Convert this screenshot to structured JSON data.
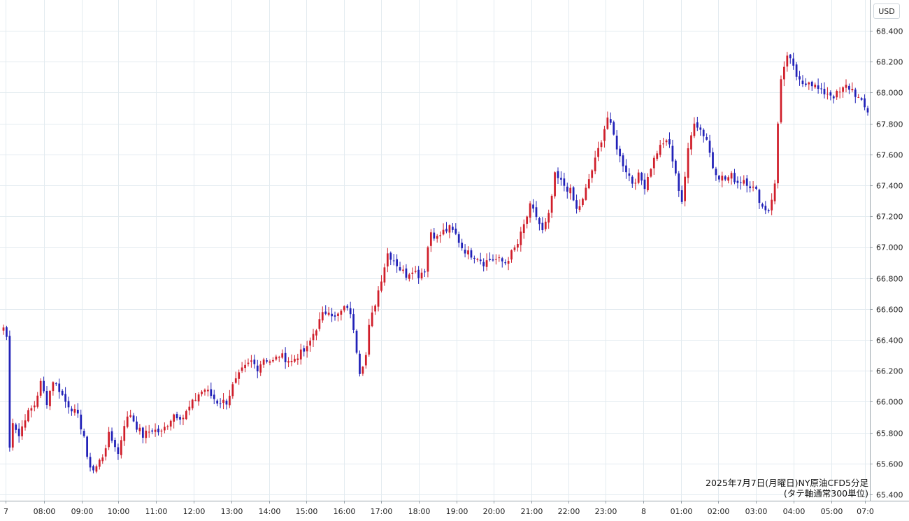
{
  "currency": "USD",
  "caption": {
    "line1": "2025年7月7日(月曜日)NY原油CFD5分足",
    "line2": "(タテ軸通常300単位)"
  },
  "colors": {
    "up": "#d01f2b",
    "down": "#2222b8",
    "grid": "#e3ebf0",
    "axis": "#9aa4ab",
    "text": "#222222"
  },
  "chart_data": {
    "type": "candlestick",
    "timeframe": "5m",
    "title": "2025年7月7日(月曜日)NY原油CFD5分足",
    "subtitle": "(タテ軸通常300単位)",
    "ylabel": "USD",
    "ylim": [
      65.37,
      68.47
    ],
    "y_ticks": [
      "65.400",
      "65.600",
      "65.800",
      "66.000",
      "66.200",
      "66.400",
      "66.600",
      "66.800",
      "67.000",
      "67.200",
      "67.400",
      "67.600",
      "67.800",
      "68.000",
      "68.200",
      "68.400"
    ],
    "x_ticks": [
      "7",
      "08:00",
      "09:00",
      "10:00",
      "11:00",
      "12:00",
      "13:00",
      "14:00",
      "15:00",
      "16:00",
      "17:00",
      "18:00",
      "19:00",
      "20:00",
      "21:00",
      "22:00",
      "23:00",
      "8",
      "01:00",
      "02:00",
      "03:00",
      "04:00",
      "05:00",
      "07:0"
    ],
    "grid": true,
    "anchors": [
      [
        0,
        66.48
      ],
      [
        1,
        66.42
      ],
      [
        2,
        65.7
      ],
      [
        3,
        65.88
      ],
      [
        5,
        65.78
      ],
      [
        7,
        65.9
      ],
      [
        10,
        65.98
      ],
      [
        12,
        66.12
      ],
      [
        14,
        66.0
      ],
      [
        16,
        66.14
      ],
      [
        18,
        66.08
      ],
      [
        20,
        66.0
      ],
      [
        22,
        65.96
      ],
      [
        24,
        65.9
      ],
      [
        26,
        65.78
      ],
      [
        27,
        65.62
      ],
      [
        29,
        65.56
      ],
      [
        30,
        65.58
      ],
      [
        32,
        65.65
      ],
      [
        34,
        65.78
      ],
      [
        36,
        65.72
      ],
      [
        37,
        65.66
      ],
      [
        39,
        65.86
      ],
      [
        41,
        65.92
      ],
      [
        43,
        65.84
      ],
      [
        45,
        65.78
      ],
      [
        48,
        65.82
      ],
      [
        51,
        65.8
      ],
      [
        53,
        65.86
      ],
      [
        55,
        65.92
      ],
      [
        58,
        65.9
      ],
      [
        60,
        65.96
      ],
      [
        63,
        66.05
      ],
      [
        65,
        66.08
      ],
      [
        67,
        66.04
      ],
      [
        69,
        66.0
      ],
      [
        72,
        66.0
      ],
      [
        74,
        66.1
      ],
      [
        77,
        66.2
      ],
      [
        80,
        66.26
      ],
      [
        82,
        66.22
      ],
      [
        84,
        66.28
      ],
      [
        87,
        66.26
      ],
      [
        89,
        66.3
      ],
      [
        91,
        66.28
      ],
      [
        93,
        66.26
      ],
      [
        95,
        66.3
      ],
      [
        98,
        66.34
      ],
      [
        100,
        66.44
      ],
      [
        103,
        66.56
      ],
      [
        105,
        66.6
      ],
      [
        107,
        66.54
      ],
      [
        109,
        66.58
      ],
      [
        111,
        66.62
      ],
      [
        113,
        66.48
      ],
      [
        115,
        66.2
      ],
      [
        117,
        66.3
      ],
      [
        118,
        66.48
      ],
      [
        120,
        66.64
      ],
      [
        122,
        66.8
      ],
      [
        124,
        66.96
      ],
      [
        126,
        66.92
      ],
      [
        128,
        66.86
      ],
      [
        130,
        66.82
      ],
      [
        132,
        66.86
      ],
      [
        134,
        66.82
      ],
      [
        136,
        66.86
      ],
      [
        137,
        67.0
      ],
      [
        138,
        67.1
      ],
      [
        140,
        67.06
      ],
      [
        142,
        67.1
      ],
      [
        144,
        67.12
      ],
      [
        146,
        67.08
      ],
      [
        148,
        67.0
      ],
      [
        150,
        66.96
      ],
      [
        153,
        66.94
      ],
      [
        155,
        66.9
      ],
      [
        157,
        66.92
      ],
      [
        159,
        66.92
      ],
      [
        162,
        66.9
      ],
      [
        164,
        66.96
      ],
      [
        166,
        67.02
      ],
      [
        168,
        67.14
      ],
      [
        170,
        67.26
      ],
      [
        172,
        67.2
      ],
      [
        174,
        67.1
      ],
      [
        176,
        67.2
      ],
      [
        178,
        67.46
      ],
      [
        180,
        67.42
      ],
      [
        183,
        67.36
      ],
      [
        185,
        67.24
      ],
      [
        187,
        67.3
      ],
      [
        189,
        67.44
      ],
      [
        191,
        67.56
      ],
      [
        193,
        67.7
      ],
      [
        195,
        67.84
      ],
      [
        197,
        67.72
      ],
      [
        199,
        67.58
      ],
      [
        201,
        67.5
      ],
      [
        203,
        67.42
      ],
      [
        205,
        67.46
      ],
      [
        207,
        67.4
      ],
      [
        209,
        67.52
      ],
      [
        211,
        67.62
      ],
      [
        213,
        67.68
      ],
      [
        215,
        67.66
      ],
      [
        217,
        67.46
      ],
      [
        219,
        67.3
      ],
      [
        221,
        67.62
      ],
      [
        223,
        67.82
      ],
      [
        225,
        67.76
      ],
      [
        227,
        67.7
      ],
      [
        229,
        67.52
      ],
      [
        231,
        67.46
      ],
      [
        233,
        67.44
      ],
      [
        235,
        67.46
      ],
      [
        237,
        67.42
      ],
      [
        239,
        67.44
      ],
      [
        241,
        67.4
      ],
      [
        243,
        67.36
      ],
      [
        245,
        67.26
      ],
      [
        247,
        67.24
      ],
      [
        249,
        67.4
      ],
      [
        250,
        67.8
      ],
      [
        251,
        68.1
      ],
      [
        253,
        68.22
      ],
      [
        255,
        68.18
      ],
      [
        256,
        68.08
      ],
      [
        258,
        68.06
      ],
      [
        260,
        68.08
      ],
      [
        262,
        68.04
      ],
      [
        264,
        68.0
      ],
      [
        266,
        68.0
      ],
      [
        268,
        67.98
      ],
      [
        270,
        68.0
      ],
      [
        272,
        68.04
      ],
      [
        274,
        68.02
      ],
      [
        276,
        67.96
      ],
      [
        278,
        67.9
      ],
      [
        279,
        67.88
      ]
    ]
  }
}
